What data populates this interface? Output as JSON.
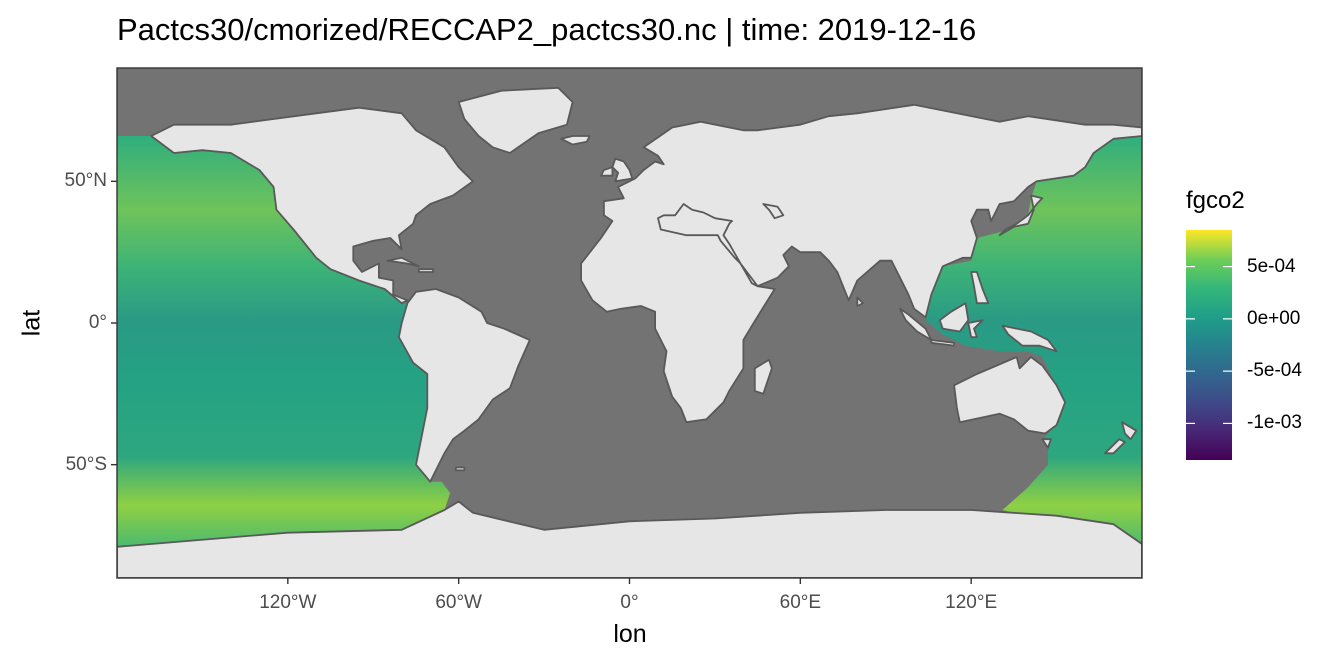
{
  "title": "Pactcs30/cmorized/RECCAP2_pactcs30.nc | time:  2019-12-16",
  "colors": {
    "ocean_nodata": "#737373",
    "land": "#e6e6e6",
    "coast": "#595959",
    "panel_border": "#333333"
  },
  "map": {
    "projection": "equirectangular",
    "lon_range": [
      -180,
      180
    ],
    "lat_range": [
      -90,
      90
    ],
    "xlabel": "lon",
    "ylabel": "lat",
    "x_ticks": [
      {
        "value": -120,
        "label": "120°W"
      },
      {
        "value": -60,
        "label": "60°W"
      },
      {
        "value": 0,
        "label": "0°"
      },
      {
        "value": 60,
        "label": "60°E"
      },
      {
        "value": 120,
        "label": "120°E"
      }
    ],
    "y_ticks": [
      {
        "value": 50,
        "label": "50°N"
      },
      {
        "value": 0,
        "label": "0°"
      },
      {
        "value": -50,
        "label": "50°S"
      }
    ],
    "data_coverage": "Pacific Ocean only",
    "continents": [
      "north-america",
      "south-america",
      "greenland",
      "europe",
      "africa",
      "asia",
      "australia",
      "antarctica",
      "madagascar",
      "japan",
      "indonesia",
      "new-guinea",
      "new-zealand",
      "uk"
    ]
  },
  "legend": {
    "title": "fgco2",
    "colormap": "viridis",
    "range": [
      -0.00135,
      0.00085
    ],
    "ticks": [
      {
        "value": 0.0005,
        "label": "5e-04"
      },
      {
        "value": 0.0,
        "label": "0e+00"
      },
      {
        "value": -0.0005,
        "label": "-5e-04"
      },
      {
        "value": -0.001,
        "label": "-1e-03"
      }
    ]
  }
}
